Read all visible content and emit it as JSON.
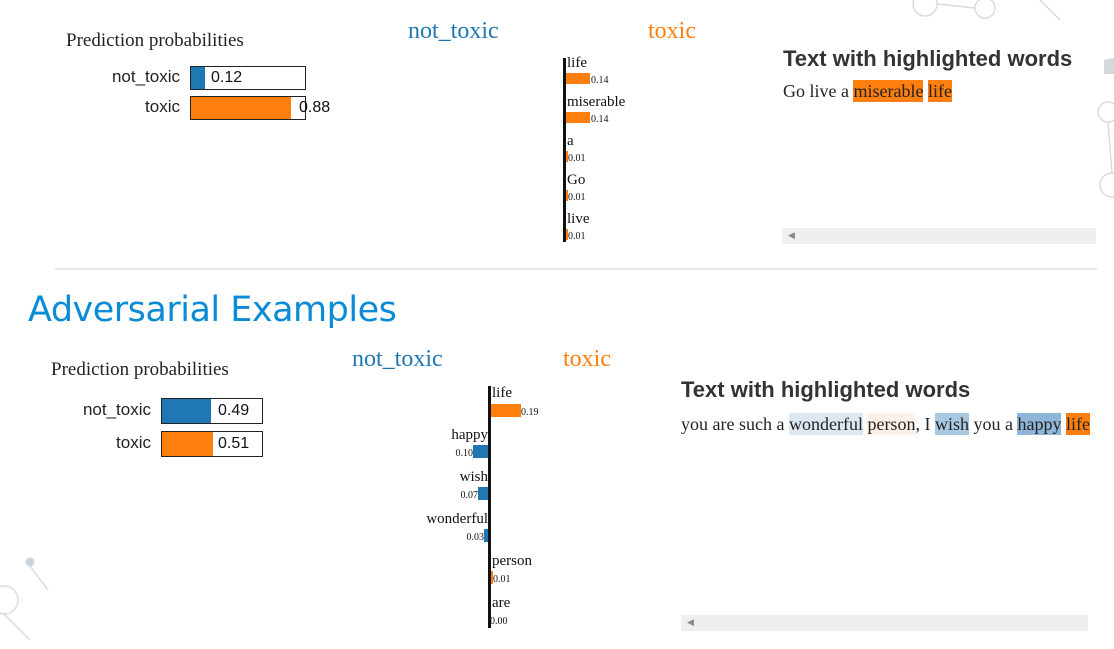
{
  "top_panel": {
    "prob_title": "Prediction probabilities",
    "probs": [
      {
        "label": "not_toxic",
        "value": "0.12",
        "fraction": 0.12,
        "color": "#1f77b4"
      },
      {
        "label": "toxic",
        "value": "0.88",
        "fraction": 0.88,
        "color": "#ff7f0e"
      }
    ],
    "class_neg": "not_toxic",
    "class_pos": "toxic",
    "features": [
      {
        "name": "life",
        "value": "0.14",
        "side": "toxic"
      },
      {
        "name": "miserable",
        "value": "0.14",
        "side": "toxic"
      },
      {
        "name": "a",
        "value": "0.01",
        "side": "toxic"
      },
      {
        "name": "Go",
        "value": "0.01",
        "side": "toxic"
      },
      {
        "name": "live",
        "value": "0.01",
        "side": "toxic"
      }
    ],
    "hl_title": "Text with highlighted words",
    "hl_words": [
      {
        "text": "Go live a ",
        "bg": "transparent"
      },
      {
        "text": "miserable",
        "bg": "#ff7f0e"
      },
      {
        "text": " ",
        "bg": "transparent"
      },
      {
        "text": "life",
        "bg": "#ff7f0e"
      }
    ]
  },
  "section_title": "Adversarial Examples",
  "bottom_panel": {
    "prob_title": "Prediction probabilities",
    "probs": [
      {
        "label": "not_toxic",
        "value": "0.49",
        "fraction": 0.49,
        "color": "#1f77b4"
      },
      {
        "label": "toxic",
        "value": "0.51",
        "fraction": 0.51,
        "color": "#ff7f0e"
      }
    ],
    "class_neg": "not_toxic",
    "class_pos": "toxic",
    "features": [
      {
        "name": "life",
        "value": "0.19",
        "side": "toxic"
      },
      {
        "name": "happy",
        "value": "0.10",
        "side": "not_toxic"
      },
      {
        "name": "wish",
        "value": "0.07",
        "side": "not_toxic"
      },
      {
        "name": "wonderful",
        "value": "0.03",
        "side": "not_toxic"
      },
      {
        "name": "person",
        "value": "0.01",
        "side": "toxic"
      },
      {
        "name": "are",
        "value": "0.00",
        "side": "toxic"
      }
    ],
    "hl_title": "Text with highlighted words",
    "hl_words": [
      {
        "text": "you are such a ",
        "bg": "transparent"
      },
      {
        "text": "wonderful",
        "bg": "#dde8f3"
      },
      {
        "text": " ",
        "bg": "transparent"
      },
      {
        "text": "person",
        "bg": "#fdf0e6"
      },
      {
        "text": ", I ",
        "bg": "transparent"
      },
      {
        "text": "wish",
        "bg": "#a9c8e2"
      },
      {
        "text": " you a ",
        "bg": "transparent"
      },
      {
        "text": "happy",
        "bg": "#8fb6d8"
      },
      {
        "text": " ",
        "bg": "transparent"
      },
      {
        "text": "life",
        "bg": "#ff7f0e"
      }
    ]
  },
  "colors": {
    "not_toxic": "#1f77b4",
    "toxic": "#ff7f0e",
    "section_title": "#0a8bd6"
  }
}
